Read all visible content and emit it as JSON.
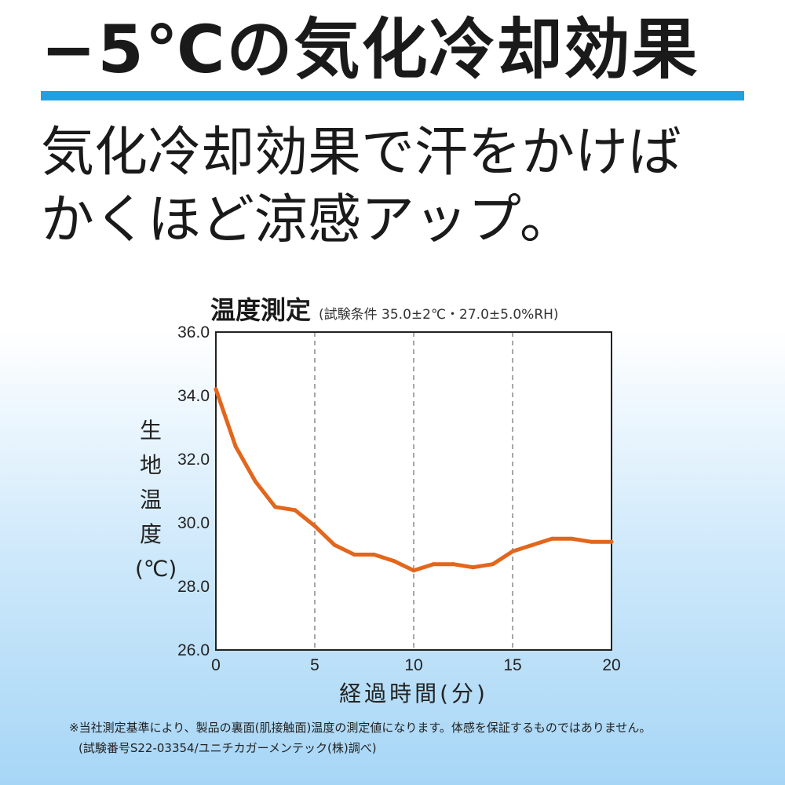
{
  "headline": "−5℃の気化冷却効果",
  "subheadline": "気化冷却効果で汗をかけば\nかくほど涼感アップ。",
  "colors": {
    "accent_rule": "#1ea0e1",
    "line": "#e2661c"
  },
  "chart_data": {
    "type": "line",
    "title": "温度測定",
    "subtitle": "(試験条件 35.0±2℃・27.0±5.0%RH)",
    "xlabel": "経過時間(分)",
    "ylabel": "生地温度(℃)",
    "ylabel_chars": [
      "生",
      "地",
      "温",
      "度",
      "(℃)"
    ],
    "xlim": [
      0,
      20
    ],
    "ylim": [
      26.0,
      36.0
    ],
    "x_ticks": [
      "0",
      "5",
      "10",
      "15",
      "20"
    ],
    "y_ticks": [
      "26.0",
      "28.0",
      "30.0",
      "32.0",
      "34.0",
      "36.0"
    ],
    "grid": "vertical dashed at x = 5, 10, 15",
    "series": [
      {
        "x": [
          0,
          1,
          2,
          3,
          4,
          5,
          6,
          7,
          8,
          9,
          10,
          11,
          12,
          13,
          14,
          15,
          16,
          17,
          18,
          19,
          20
        ],
        "y": [
          34.2,
          32.4,
          31.3,
          30.5,
          30.4,
          29.9,
          29.3,
          29.0,
          29.0,
          28.8,
          28.5,
          28.7,
          28.7,
          28.6,
          28.7,
          29.1,
          29.3,
          29.5,
          29.5,
          29.4,
          29.4
        ]
      }
    ]
  },
  "footnote_line1": "※当社測定基準により、製品の裏面(肌接触面)温度の測定値になります。体感を保証するものではありません。",
  "footnote_line2": "(試験番号S22-03354/ユニチカガーメンテック(株)調べ)"
}
